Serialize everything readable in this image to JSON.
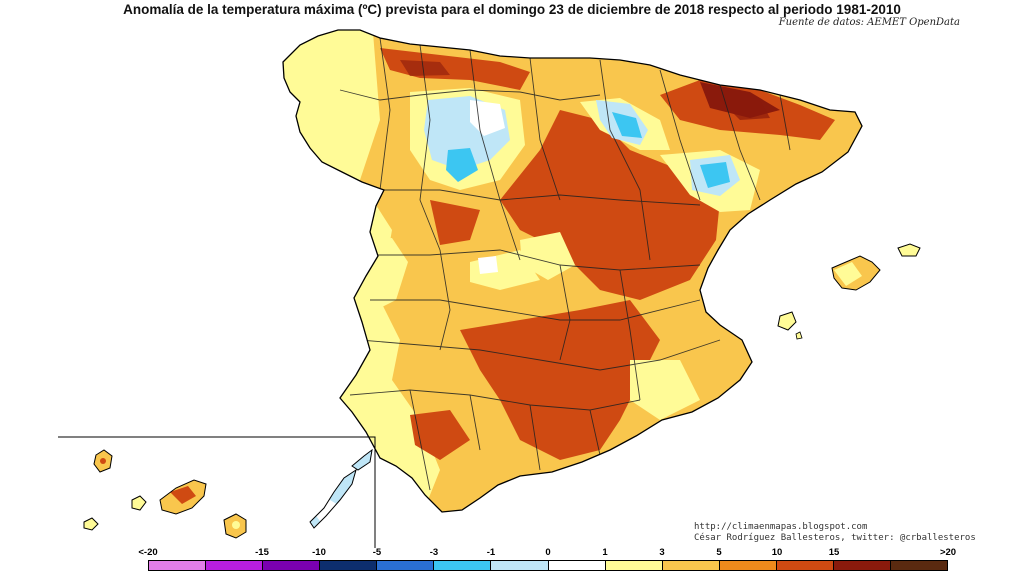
{
  "map": {
    "title": "Anomalía de la temperatura máxima (ºC) prevista para el domingo 23 de diciembre de 2018 respecto al periodo 1981-2010",
    "source": "Fuente de datos: AEMET OpenData",
    "credit_line1": "http://climaenmapas.blogspot.com",
    "credit_line2": "César Rodríguez Ballesteros, twitter: @crballesteros",
    "regions": [
      "peninsula",
      "baleares",
      "canarias"
    ]
  },
  "legend": {
    "labels": [
      "<-20",
      "-15",
      "-10",
      "-5",
      "-3",
      "-1",
      "0",
      "1",
      "3",
      "5",
      "10",
      "15",
      ">20"
    ],
    "colors": [
      "#e27ee9",
      "#b81ee0",
      "#7a00b0",
      "#0d2e6e",
      "#2a6fd3",
      "#3cc6f2",
      "#bfe6f7",
      "#ffffff",
      "#fffb97",
      "#f9c64d",
      "#ee8a1c",
      "#cf4a12",
      "#8a1a0c",
      "#5a2a10"
    ]
  },
  "colors": {
    "sea": "#ffffff",
    "border": "#000000"
  }
}
